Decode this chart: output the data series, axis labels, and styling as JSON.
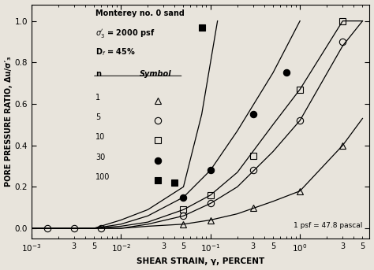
{
  "xlabel": "SHEAR STRAIN, γ, PERCENT",
  "ylabel": "PORE PRESSURE RATIO, Δu/σ′₃",
  "note": "1 psf = 47.8 pascal",
  "background_color": "#e8e4dc",
  "xlim": [
    0.001,
    6.0
  ],
  "ylim": [
    -0.05,
    1.08
  ],
  "yticks": [
    0.0,
    0.2,
    0.4,
    0.6,
    0.8,
    1.0
  ],
  "curves": {
    "n1": {
      "x": [
        0.001,
        0.002,
        0.005,
        0.01,
        0.02,
        0.05,
        0.1,
        0.2,
        0.5,
        1.0,
        3.0,
        5.0
      ],
      "y": [
        0.0,
        0.0,
        0.0,
        0.0,
        0.01,
        0.02,
        0.04,
        0.07,
        0.13,
        0.18,
        0.4,
        0.53
      ]
    },
    "n5": {
      "x": [
        0.001,
        0.002,
        0.005,
        0.01,
        0.02,
        0.05,
        0.1,
        0.2,
        0.5,
        1.0,
        3.0,
        5.0
      ],
      "y": [
        0.0,
        0.0,
        0.0,
        0.0,
        0.02,
        0.06,
        0.12,
        0.2,
        0.37,
        0.52,
        0.88,
        1.0
      ]
    },
    "n10": {
      "x": [
        0.001,
        0.002,
        0.005,
        0.01,
        0.02,
        0.05,
        0.1,
        0.2,
        0.5,
        1.0,
        3.0,
        5.0
      ],
      "y": [
        0.0,
        0.0,
        0.0,
        0.01,
        0.03,
        0.09,
        0.16,
        0.27,
        0.5,
        0.67,
        1.0,
        1.0
      ]
    },
    "n30": {
      "x": [
        0.001,
        0.002,
        0.005,
        0.01,
        0.02,
        0.05,
        0.1,
        0.2,
        0.5,
        1.0
      ],
      "y": [
        0.0,
        0.0,
        0.0,
        0.02,
        0.06,
        0.15,
        0.28,
        0.47,
        0.75,
        1.0
      ]
    },
    "n100": {
      "x": [
        0.001,
        0.002,
        0.005,
        0.01,
        0.02,
        0.05,
        0.08,
        0.12
      ],
      "y": [
        0.0,
        0.0,
        0.0,
        0.04,
        0.09,
        0.2,
        0.55,
        1.0
      ]
    }
  },
  "markers": {
    "n1": {
      "x": [
        0.05,
        0.1,
        0.3,
        1.0,
        3.0
      ],
      "y": [
        0.02,
        0.04,
        0.1,
        0.18,
        0.4
      ],
      "marker": "^",
      "filled": false
    },
    "n5": {
      "x": [
        0.05,
        0.1,
        0.3,
        1.0,
        3.0
      ],
      "y": [
        0.06,
        0.12,
        0.28,
        0.52,
        0.9
      ],
      "marker": "o",
      "filled": false
    },
    "n10": {
      "x": [
        0.05,
        0.1,
        0.3,
        1.0,
        3.0
      ],
      "y": [
        0.09,
        0.16,
        0.35,
        0.67,
        1.0
      ],
      "marker": "s",
      "filled": false
    },
    "n30": {
      "x": [
        0.05,
        0.1,
        0.3,
        0.7
      ],
      "y": [
        0.15,
        0.28,
        0.55,
        0.75
      ],
      "marker": "o",
      "filled": true
    },
    "n100": {
      "x": [
        0.04,
        0.08
      ],
      "y": [
        0.22,
        0.97
      ],
      "marker": "s",
      "filled": true
    }
  },
  "low_strain_circles": {
    "x": [
      0.0015,
      0.003,
      0.006
    ],
    "y": [
      0.0,
      0.0,
      0.0
    ]
  }
}
